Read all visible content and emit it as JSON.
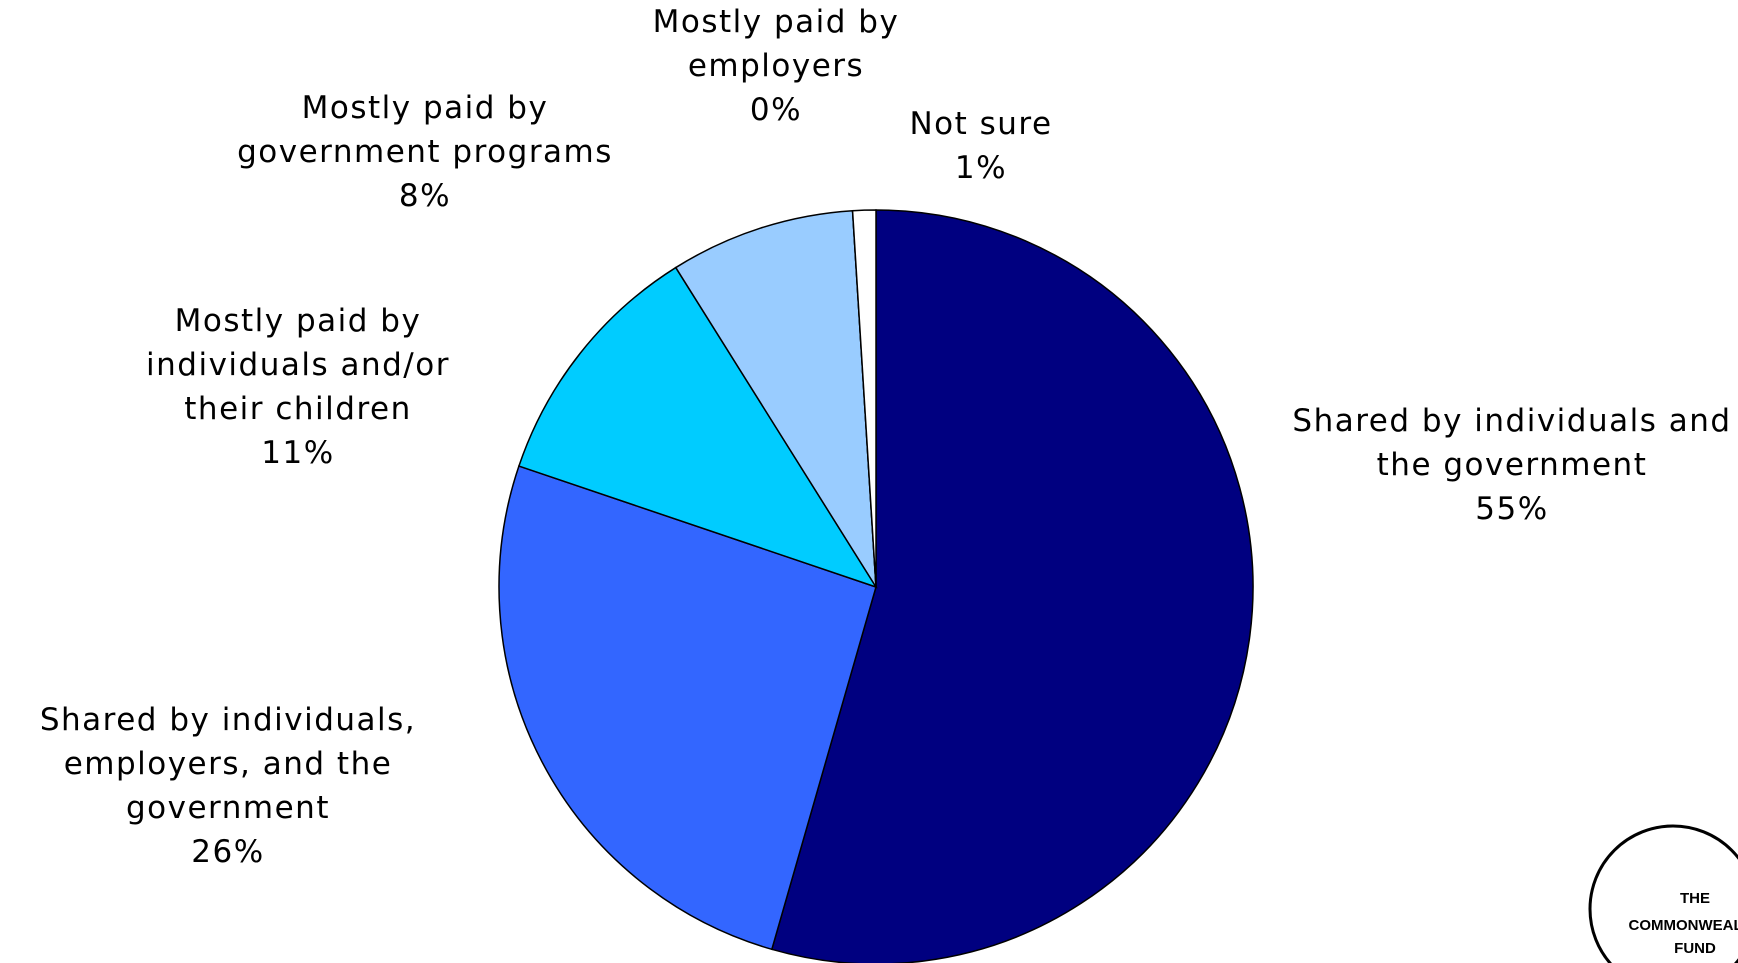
{
  "chart_data": {
    "type": "pie",
    "categories": [
      "Shared by individuals and the government",
      "Shared by individuals, employers, and the government",
      "Mostly paid by individuals and/or their children",
      "Mostly paid by government programs",
      "Mostly paid by employers",
      "Not sure"
    ],
    "values": [
      55,
      26,
      11,
      8,
      0,
      1
    ],
    "value_labels": [
      "55%",
      "26%",
      "11%",
      "8%",
      "0%",
      "1%"
    ],
    "colors": [
      "#000080",
      "#3366ff",
      "#00ccff",
      "#99ccff",
      "#ffffff",
      "#ffffff"
    ]
  },
  "logo": {
    "lines": [
      "THE",
      "COMMONWEALTH",
      "FUND"
    ]
  }
}
